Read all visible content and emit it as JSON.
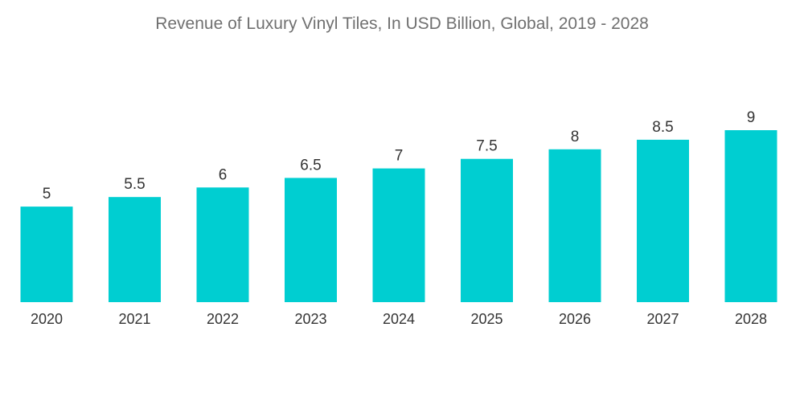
{
  "chart_data": {
    "type": "bar",
    "title": "Revenue of Luxury Vinyl Tiles, In USD Billion, Global, 2019 - 2028",
    "categories": [
      "2020",
      "2021",
      "2022",
      "2023",
      "2024",
      "2025",
      "2026",
      "2027",
      "2028"
    ],
    "values": [
      5,
      5.5,
      6,
      6.5,
      7,
      7.5,
      8,
      8.5,
      9
    ],
    "value_labels": [
      "5",
      "5.5",
      "6",
      "6.5",
      "7",
      "7.5",
      "8",
      "8.5",
      "9"
    ],
    "xlabel": "",
    "ylabel": "",
    "ylim": [
      0,
      9
    ],
    "grid": false,
    "legend": "none",
    "bar_color": "#00CED1"
  }
}
